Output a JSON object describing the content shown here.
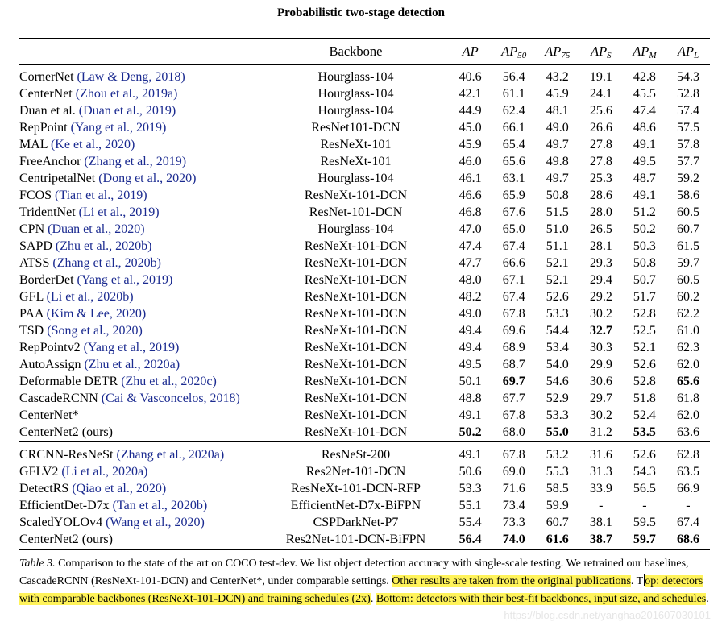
{
  "title": "Probabilistic two-stage detection",
  "header": {
    "method": "",
    "backbone": "Backbone",
    "ap": "AP",
    "ap50_sub": "50",
    "ap75_sub": "75",
    "aps_sub": "S",
    "apm_sub": "M",
    "apl_sub": "L"
  },
  "group1": [
    {
      "name": "CornerNet",
      "cite": "(Law & Deng, 2018)",
      "backbone": "Hourglass-104",
      "ap": "40.6",
      "ap50": "56.4",
      "ap75": "43.2",
      "aps": "19.1",
      "apm": "42.8",
      "apl": "54.3"
    },
    {
      "name": "CenterNet",
      "cite": "(Zhou et al., 2019a)",
      "backbone": "Hourglass-104",
      "ap": "42.1",
      "ap50": "61.1",
      "ap75": "45.9",
      "aps": "24.1",
      "apm": "45.5",
      "apl": "52.8"
    },
    {
      "name": "Duan et al.",
      "cite": "(Duan et al., 2019)",
      "backbone": "Hourglass-104",
      "ap": "44.9",
      "ap50": "62.4",
      "ap75": "48.1",
      "aps": "25.6",
      "apm": "47.4",
      "apl": "57.4"
    },
    {
      "name": "RepPoint",
      "cite": "(Yang et al., 2019)",
      "backbone": "ResNet101-DCN",
      "ap": "45.0",
      "ap50": "66.1",
      "ap75": "49.0",
      "aps": "26.6",
      "apm": "48.6",
      "apl": "57.5"
    },
    {
      "name": "MAL",
      "cite": "(Ke et al., 2020)",
      "backbone": "ResNeXt-101",
      "ap": "45.9",
      "ap50": "65.4",
      "ap75": "49.7",
      "aps": "27.8",
      "apm": "49.1",
      "apl": "57.8"
    },
    {
      "name": "FreeAnchor",
      "cite": "(Zhang et al., 2019)",
      "backbone": "ResNeXt-101",
      "ap": "46.0",
      "ap50": "65.6",
      "ap75": "49.8",
      "aps": "27.8",
      "apm": "49.5",
      "apl": "57.7"
    },
    {
      "name": "CentripetalNet",
      "cite": "(Dong et al., 2020)",
      "backbone": "Hourglass-104",
      "ap": "46.1",
      "ap50": "63.1",
      "ap75": "49.7",
      "aps": "25.3",
      "apm": "48.7",
      "apl": "59.2"
    },
    {
      "name": "FCOS",
      "cite": "(Tian et al., 2019)",
      "backbone": "ResNeXt-101-DCN",
      "ap": "46.6",
      "ap50": "65.9",
      "ap75": "50.8",
      "aps": "28.6",
      "apm": "49.1",
      "apl": "58.6"
    },
    {
      "name": "TridentNet",
      "cite": "(Li et al., 2019)",
      "backbone": "ResNet-101-DCN",
      "ap": "46.8",
      "ap50": "67.6",
      "ap75": "51.5",
      "aps": "28.0",
      "apm": "51.2",
      "apl": "60.5"
    },
    {
      "name": "CPN",
      "cite": "(Duan et al., 2020)",
      "backbone": "Hourglass-104",
      "ap": "47.0",
      "ap50": "65.0",
      "ap75": "51.0",
      "aps": "26.5",
      "apm": "50.2",
      "apl": "60.7"
    },
    {
      "name": "SAPD",
      "cite": "(Zhu et al., 2020b)",
      "backbone": "ResNeXt-101-DCN",
      "ap": "47.4",
      "ap50": "67.4",
      "ap75": "51.1",
      "aps": "28.1",
      "apm": "50.3",
      "apl": "61.5"
    },
    {
      "name": "ATSS",
      "cite": "(Zhang et al., 2020b)",
      "backbone": "ResNeXt-101-DCN",
      "ap": "47.7",
      "ap50": "66.6",
      "ap75": "52.1",
      "aps": "29.3",
      "apm": "50.8",
      "apl": "59.7"
    },
    {
      "name": "BorderDet",
      "cite": "(Yang et al., 2019)",
      "backbone": "ResNeXt-101-DCN",
      "ap": "48.0",
      "ap50": "67.1",
      "ap75": "52.1",
      "aps": "29.4",
      "apm": "50.7",
      "apl": "60.5"
    },
    {
      "name": "GFL",
      "cite": "(Li et al., 2020b)",
      "backbone": "ResNeXt-101-DCN",
      "ap": "48.2",
      "ap50": "67.4",
      "ap75": "52.6",
      "aps": "29.2",
      "apm": "51.7",
      "apl": "60.2"
    },
    {
      "name": "PAA",
      "cite": "(Kim & Lee, 2020)",
      "backbone": "ResNeXt-101-DCN",
      "ap": "49.0",
      "ap50": "67.8",
      "ap75": "53.3",
      "aps": "30.2",
      "apm": "52.8",
      "apl": "62.2"
    },
    {
      "name": "TSD",
      "cite": "(Song et al., 2020)",
      "backbone": "ResNeXt-101-DCN",
      "ap": "49.4",
      "ap50": "69.6",
      "ap75": "54.4",
      "aps": "32.7",
      "apm": "52.5",
      "apl": "61.0",
      "bold": [
        "aps"
      ]
    },
    {
      "name": "RepPointv2",
      "cite": "(Yang et al., 2019)",
      "backbone": "ResNeXt-101-DCN",
      "ap": "49.4",
      "ap50": "68.9",
      "ap75": "53.4",
      "aps": "30.3",
      "apm": "52.1",
      "apl": "62.3"
    },
    {
      "name": "AutoAssign",
      "cite": "(Zhu et al., 2020a)",
      "backbone": "ResNeXt-101-DCN",
      "ap": "49.5",
      "ap50": "68.7",
      "ap75": "54.0",
      "aps": "29.9",
      "apm": "52.6",
      "apl": "62.0"
    },
    {
      "name": "Deformable DETR",
      "cite": "(Zhu et al., 2020c)",
      "backbone": "ResNeXt-101-DCN",
      "ap": "50.1",
      "ap50": "69.7",
      "ap75": "54.6",
      "aps": "30.6",
      "apm": "52.8",
      "apl": "65.6",
      "bold": [
        "ap50",
        "apl"
      ]
    },
    {
      "name": "CascadeRCNN",
      "cite": "(Cai & Vasconcelos, 2018)",
      "backbone": "ResNeXt-101-DCN",
      "ap": "48.8",
      "ap50": "67.7",
      "ap75": "52.9",
      "aps": "29.7",
      "apm": "51.8",
      "apl": "61.8"
    },
    {
      "name": "CenterNet*",
      "cite": "",
      "backbone": "ResNeXt-101-DCN",
      "ap": "49.1",
      "ap50": "67.8",
      "ap75": "53.3",
      "aps": "30.2",
      "apm": "52.4",
      "apl": "62.0"
    },
    {
      "name": "CenterNet2 (ours)",
      "cite": "",
      "backbone": "ResNeXt-101-DCN",
      "ap": "50.2",
      "ap50": "68.0",
      "ap75": "55.0",
      "aps": "31.2",
      "apm": "53.5",
      "apl": "63.6",
      "bold": [
        "ap",
        "ap75",
        "apm"
      ]
    }
  ],
  "group2": [
    {
      "name": "CRCNN-ResNeSt",
      "cite": "(Zhang et al., 2020a)",
      "backbone": "ResNeSt-200",
      "ap": "49.1",
      "ap50": "67.8",
      "ap75": "53.2",
      "aps": "31.6",
      "apm": "52.6",
      "apl": "62.8"
    },
    {
      "name": "GFLV2",
      "cite": "(Li et al., 2020a)",
      "backbone": "Res2Net-101-DCN",
      "ap": "50.6",
      "ap50": "69.0",
      "ap75": "55.3",
      "aps": "31.3",
      "apm": "54.3",
      "apl": "63.5"
    },
    {
      "name": "DetectRS",
      "cite": "(Qiao et al., 2020)",
      "backbone": "ResNeXt-101-DCN-RFP",
      "ap": "53.3",
      "ap50": "71.6",
      "ap75": "58.5",
      "aps": "33.9",
      "apm": "56.5",
      "apl": "66.9"
    },
    {
      "name": "EfficientDet-D7x",
      "cite": "(Tan et al., 2020b)",
      "backbone": "EfficientNet-D7x-BiFPN",
      "ap": "55.1",
      "ap50": "73.4",
      "ap75": "59.9",
      "aps": "-",
      "apm": "-",
      "apl": "-"
    },
    {
      "name": "ScaledYOLOv4",
      "cite": "(Wang et al., 2020)",
      "backbone": "CSPDarkNet-P7",
      "ap": "55.4",
      "ap50": "73.3",
      "ap75": "60.7",
      "aps": "38.1",
      "apm": "59.5",
      "apl": "67.4"
    },
    {
      "name": "CenterNet2 (ours)",
      "cite": "",
      "backbone": "Res2Net-101-DCN-BiFPN",
      "ap": "56.4",
      "ap50": "74.0",
      "ap75": "61.6",
      "aps": "38.7",
      "apm": "59.7",
      "apl": "68.6",
      "bold": [
        "ap",
        "ap50",
        "ap75",
        "aps",
        "apm",
        "apl"
      ]
    }
  ],
  "caption": {
    "label": "Table 3.",
    "text1": " Comparison to the state of the art on COCO test-dev. We list object detection accuracy with single-scale testing. We retrained our baselines, CascadeRCNN (ResNeXt-101-DCN) and CenterNet*, under comparable settings. ",
    "hl1": "Other results are taken from the original publications",
    "text2": ". T",
    "hl2": "op: detectors with comparable backbones (ResNeXt-101-DCN) and training schedules (2x)",
    "text3": ". ",
    "hl3": "Bottom: detectors with their best-fit backbones, input size, and schedules",
    "text4": "."
  },
  "watermark": "https://blog.csdn.net/yanghao201607030101"
}
